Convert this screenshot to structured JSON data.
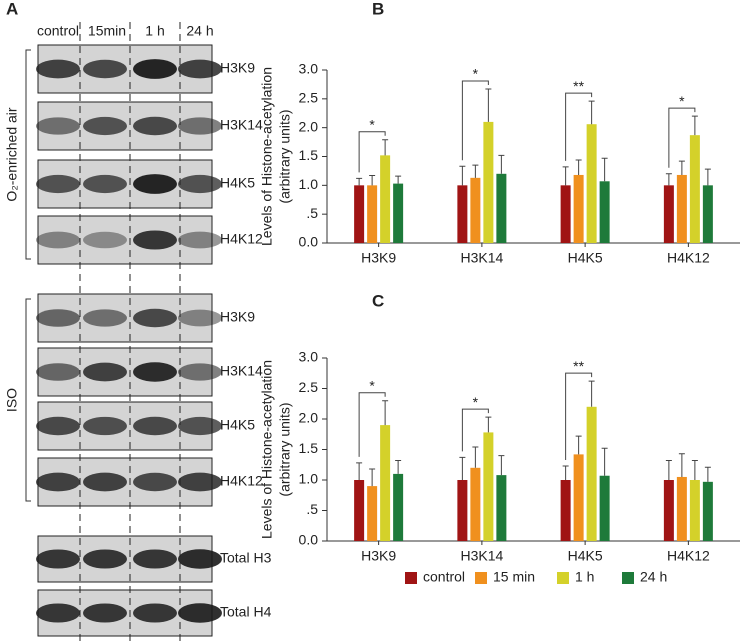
{
  "blot": {
    "panel": "A",
    "columns": [
      "control",
      "15min",
      "1 h",
      "24 h"
    ],
    "groups": [
      {
        "label": "O₂-enriched air",
        "rows": [
          "H3K9",
          "H3K14",
          "H4K5",
          "H4K12"
        ]
      },
      {
        "label": "ISO",
        "rows": [
          "H3K9",
          "H3K14",
          "H4K5",
          "H4K12"
        ]
      }
    ],
    "totals": [
      "Total H3",
      "Total H4"
    ]
  },
  "chart_data": [
    {
      "type": "bar",
      "panel": "B",
      "ylabel": [
        "Levels of Histone-acetylation",
        "(arbitrary units)"
      ],
      "categories": [
        "H3K9",
        "H3K14",
        "H4K5",
        "H4K12"
      ],
      "series": [
        {
          "name": "control",
          "color": "#a01414",
          "values": [
            1.0,
            1.0,
            1.0,
            1.0
          ],
          "errors": [
            0.12,
            0.33,
            0.32,
            0.2
          ]
        },
        {
          "name": "15 min",
          "color": "#f0901e",
          "values": [
            1.0,
            1.13,
            1.18,
            1.18
          ],
          "errors": [
            0.17,
            0.22,
            0.26,
            0.24
          ]
        },
        {
          "name": "1 h",
          "color": "#d4d12a",
          "values": [
            1.52,
            2.1,
            2.06,
            1.87
          ],
          "errors": [
            0.27,
            0.57,
            0.4,
            0.33
          ]
        },
        {
          "name": "24 h",
          "color": "#1e7a3a",
          "values": [
            1.03,
            1.2,
            1.07,
            1.0
          ],
          "errors": [
            0.13,
            0.32,
            0.4,
            0.28
          ]
        }
      ],
      "annotations": [
        "*",
        "*",
        "**",
        "*"
      ],
      "ylim": [
        0,
        3
      ],
      "yticks": [
        {
          "value": 0,
          "label": "0.0"
        },
        {
          "value": 0.5,
          "label": ".5"
        },
        {
          "value": 1,
          "label": "1.0"
        },
        {
          "value": 1.5,
          "label": "1.5"
        },
        {
          "value": 2,
          "label": "2.0"
        },
        {
          "value": 2.5,
          "label": "2.5"
        },
        {
          "value": 3,
          "label": "3.0"
        }
      ],
      "legend": false
    },
    {
      "type": "bar",
      "panel": "C",
      "ylabel": [
        "Levels of Histone-acetylation",
        "(arbitrary units)"
      ],
      "categories": [
        "H3K9",
        "H3K14",
        "H4K5",
        "H4K12"
      ],
      "series": [
        {
          "name": "control",
          "color": "#a01414",
          "values": [
            1.0,
            1.0,
            1.0,
            1.0
          ],
          "errors": [
            0.28,
            0.37,
            0.23,
            0.32
          ]
        },
        {
          "name": "15 min",
          "color": "#f0901e",
          "values": [
            0.9,
            1.2,
            1.42,
            1.05
          ],
          "errors": [
            0.28,
            0.34,
            0.3,
            0.38
          ]
        },
        {
          "name": "1 h",
          "color": "#d4d12a",
          "values": [
            1.9,
            1.78,
            2.2,
            1.0
          ],
          "errors": [
            0.4,
            0.25,
            0.42,
            0.32
          ]
        },
        {
          "name": "24 h",
          "color": "#1e7a3a",
          "values": [
            1.1,
            1.08,
            1.07,
            0.97
          ],
          "errors": [
            0.22,
            0.32,
            0.45,
            0.24
          ]
        }
      ],
      "annotations": [
        "*",
        "*",
        "**",
        null
      ],
      "ylim": [
        0,
        3
      ],
      "yticks": [
        {
          "value": 0,
          "label": "0.0"
        },
        {
          "value": 0.5,
          "label": ".5"
        },
        {
          "value": 1,
          "label": "1.0"
        },
        {
          "value": 1.5,
          "label": "1.5"
        },
        {
          "value": 2,
          "label": "2.0"
        },
        {
          "value": 2.5,
          "label": "2.5"
        },
        {
          "value": 3,
          "label": "3.0"
        }
      ],
      "legend": true
    }
  ]
}
